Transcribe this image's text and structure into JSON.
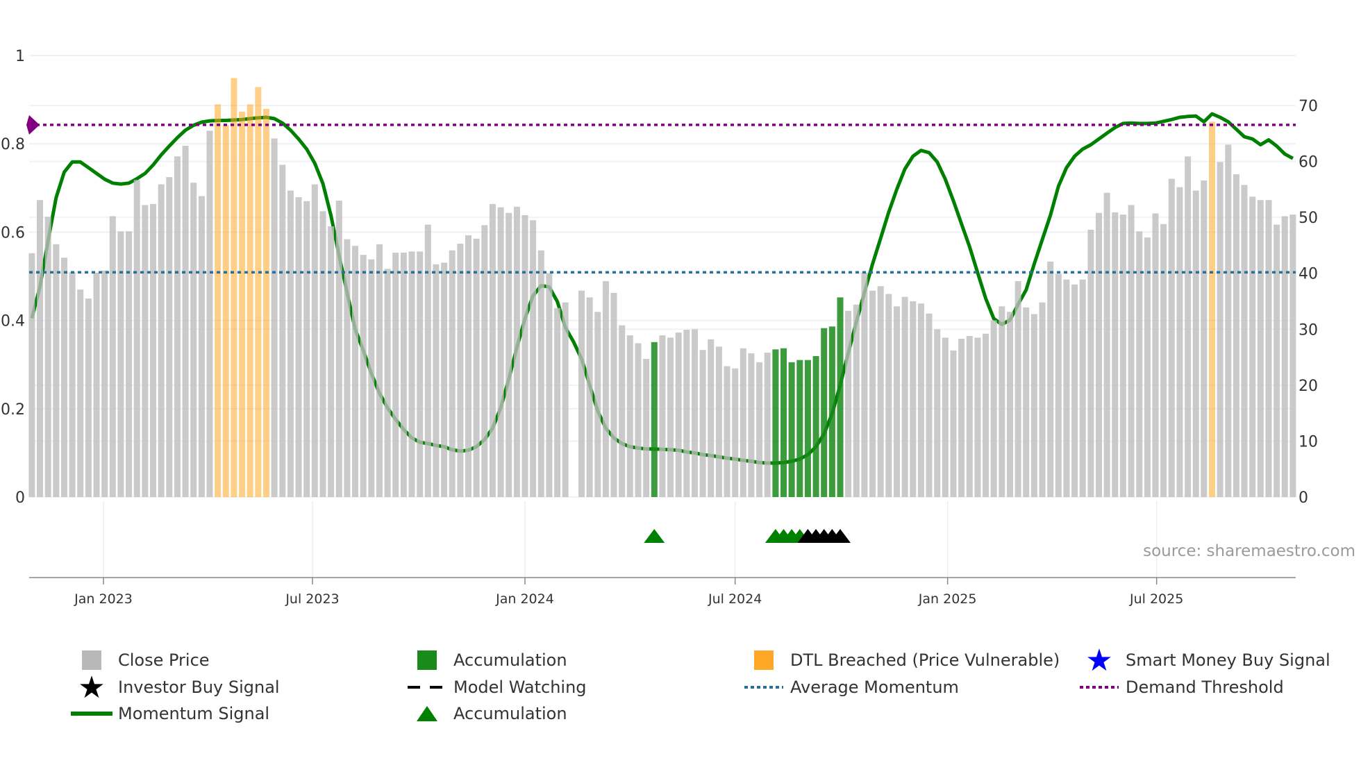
{
  "chart_data": {
    "type": "bar",
    "title": "",
    "x_start": "2022-10-31",
    "x_step_days": 7,
    "close_price": [
      43.6,
      53.1,
      50.1,
      45.2,
      42.8,
      40.2,
      37.1,
      35.5,
      40.1,
      40.5,
      50.2,
      47.5,
      47.5,
      56.7,
      52.2,
      52.4,
      55.9,
      57.2,
      60.9,
      62.8,
      56.2,
      53.8,
      65.5,
      70.2,
      66.5,
      74.9,
      68.9,
      70.2,
      73.3,
      69.4,
      64.1,
      59.4,
      54.8,
      53.6,
      52.9,
      55.9,
      51.1,
      48.4,
      53.0,
      46.1,
      44.9,
      43.3,
      42.5,
      45.2,
      40.8,
      43.7,
      43.7,
      43.9,
      43.9,
      48.7,
      41.6,
      41.9,
      44.1,
      45.3,
      46.8,
      46.2,
      48.6,
      52.4,
      51.8,
      50.8,
      51.9,
      50.4,
      49.5,
      44.1,
      40.0,
      33.8,
      34.8,
      0,
      36.9,
      35.7,
      33.1,
      38.6,
      36.5,
      30.7,
      28.9,
      27.5,
      24.7,
      27.7,
      28.9,
      28.5,
      29.4,
      29.9,
      30.0,
      26.3,
      28.2,
      26.9,
      23.4,
      23.0,
      26.6,
      25.7,
      24.1,
      25.8,
      26.4,
      26.6,
      24.1,
      24.5,
      24.5,
      25.2,
      30.2,
      30.5,
      35.7,
      33.3,
      34.4,
      40.1,
      36.9,
      37.7,
      36.3,
      34.1,
      35.8,
      35.0,
      34.6,
      32.8,
      30.0,
      28.5,
      26.2,
      28.3,
      28.8,
      28.5,
      29.2,
      31.6,
      34.1,
      33.1,
      38.6,
      33.9,
      32.7,
      34.8,
      42.1,
      39.9,
      38.9,
      38.0,
      38.9,
      47.8,
      50.8,
      54.4,
      50.9,
      50.5,
      52.2,
      47.5,
      46.4,
      50.7,
      48.8,
      56.9,
      55.4,
      60.9,
      54.8,
      56.6,
      67.1,
      59.9,
      63.0,
      57.7,
      55.8,
      53.7,
      53.1,
      53.1,
      48.7,
      50.2,
      50.5
    ],
    "momentum": [
      0.405,
      0.476,
      0.58,
      0.678,
      0.736,
      0.759,
      0.759,
      0.746,
      0.733,
      0.72,
      0.711,
      0.709,
      0.711,
      0.721,
      0.733,
      0.752,
      0.775,
      0.795,
      0.814,
      0.831,
      0.842,
      0.849,
      0.852,
      0.853,
      0.853,
      0.854,
      0.855,
      0.857,
      0.859,
      0.86,
      0.857,
      0.847,
      0.831,
      0.811,
      0.788,
      0.756,
      0.71,
      0.638,
      0.547,
      0.463,
      0.38,
      0.332,
      0.28,
      0.235,
      0.202,
      0.176,
      0.153,
      0.134,
      0.124,
      0.121,
      0.117,
      0.114,
      0.107,
      0.104,
      0.106,
      0.114,
      0.13,
      0.156,
      0.202,
      0.267,
      0.339,
      0.404,
      0.456,
      0.479,
      0.476,
      0.443,
      0.384,
      0.352,
      0.313,
      0.254,
      0.195,
      0.156,
      0.134,
      0.121,
      0.114,
      0.111,
      0.109,
      0.109,
      0.108,
      0.107,
      0.106,
      0.102,
      0.1,
      0.096,
      0.094,
      0.091,
      0.088,
      0.086,
      0.083,
      0.081,
      0.078,
      0.077,
      0.077,
      0.078,
      0.081,
      0.086,
      0.096,
      0.114,
      0.143,
      0.189,
      0.254,
      0.326,
      0.397,
      0.463,
      0.528,
      0.586,
      0.645,
      0.697,
      0.743,
      0.772,
      0.785,
      0.78,
      0.759,
      0.72,
      0.671,
      0.619,
      0.567,
      0.508,
      0.45,
      0.404,
      0.391,
      0.401,
      0.436,
      0.469,
      0.528,
      0.583,
      0.638,
      0.704,
      0.746,
      0.772,
      0.788,
      0.798,
      0.811,
      0.824,
      0.837,
      0.846,
      0.847,
      0.846,
      0.846,
      0.847,
      0.851,
      0.855,
      0.86,
      0.862,
      0.863,
      0.85,
      0.868,
      0.86,
      0.85,
      0.833,
      0.816,
      0.811,
      0.798,
      0.809,
      0.795,
      0.777,
      0.767
    ],
    "dtl_breached_indices": [
      23,
      24,
      25,
      26,
      27,
      28,
      29,
      146
    ],
    "accumulation_bar_indices": [
      77,
      92,
      93,
      94,
      95,
      96,
      97,
      98,
      99,
      100
    ],
    "accumulation_triangle_indices": [
      77,
      92,
      93,
      94,
      95
    ],
    "black_triangle_indices": [
      96,
      97,
      98,
      99,
      100
    ],
    "average_momentum": 0.509,
    "demand_threshold": 0.843,
    "left_axis": {
      "ylim": [
        0,
        1
      ],
      "ticks": [
        0,
        0.2,
        0.4,
        0.6,
        0.8,
        1
      ],
      "labels": [
        "0",
        "0.2",
        "0.4",
        "0.6",
        "0.8",
        "1"
      ]
    },
    "right_axis": {
      "ylim": [
        0,
        70
      ],
      "ticks": [
        0,
        10,
        20,
        30,
        40,
        50,
        60,
        70
      ],
      "labels": [
        "0",
        "10",
        "20",
        "30",
        "40",
        "50",
        "60",
        "70"
      ]
    },
    "x_ticks": [
      {
        "date": "2023-01-01",
        "label": "Jan 2023"
      },
      {
        "date": "2023-07-01",
        "label": "Jul 2023"
      },
      {
        "date": "2024-01-01",
        "label": "Jan 2024"
      },
      {
        "date": "2024-07-01",
        "label": "Jul 2024"
      },
      {
        "date": "2025-01-01",
        "label": "Jan 2025"
      },
      {
        "date": "2025-07-01",
        "label": "Jul 2025"
      }
    ],
    "grid": true,
    "legend_placement": "bottom",
    "colors": {
      "close": "#bdbdbd",
      "dtl": "#ffa726",
      "accumulation": "#1a8a1a",
      "momentum": "#008000",
      "average": "#2a6f97",
      "threshold": "#800080",
      "smart_money": "#0000ff"
    }
  },
  "source": "source: sharemaestro.com",
  "legend": [
    {
      "label": "Close Price",
      "marker": "gray-square"
    },
    {
      "label": "Accumulation",
      "marker": "green-square"
    },
    {
      "label": "DTL Breached (Price Vulnerable)",
      "marker": "orange-square"
    },
    {
      "label": "Smart Money Buy Signal",
      "marker": "blue-star"
    },
    {
      "label": "Investor Buy Signal",
      "marker": "black-star"
    },
    {
      "label": "Model Watching",
      "marker": "black-dash"
    },
    {
      "label": "Average Momentum",
      "marker": "blue-dotted"
    },
    {
      "label": "Demand Threshold",
      "marker": "purple-dotted"
    },
    {
      "label": "Momentum Signal",
      "marker": "green-line"
    },
    {
      "label": "Accumulation",
      "marker": "green-triangle"
    }
  ]
}
